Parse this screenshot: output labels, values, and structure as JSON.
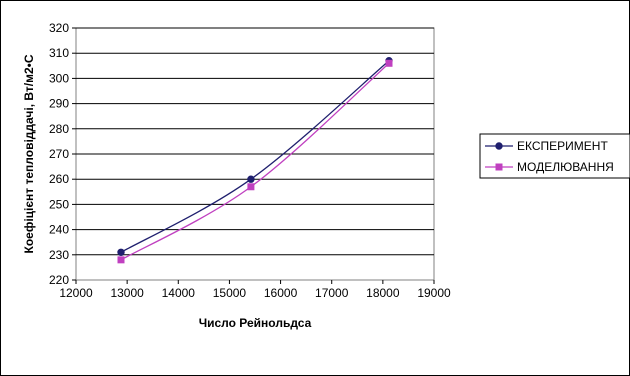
{
  "chart_data": {
    "type": "line",
    "title": "",
    "xlabel": "Число Рейнольдса",
    "ylabel": "Коефіцієнт тепловіддачі, Вт/м2•С",
    "xlim": [
      12000,
      19000
    ],
    "ylim": [
      220,
      320
    ],
    "x_ticks": [
      12000,
      13000,
      14000,
      15000,
      16000,
      17000,
      18000,
      19000
    ],
    "y_ticks": [
      220,
      230,
      240,
      250,
      260,
      270,
      280,
      290,
      300,
      310,
      320
    ],
    "grid": "horizontal",
    "legend_position": "right",
    "series": [
      {
        "name": "ЕКСПЕРИМЕНТ",
        "color": "#1F1F6E",
        "marker": "circle",
        "x": [
          12880,
          15420,
          18120
        ],
        "y": [
          231,
          260,
          307
        ]
      },
      {
        "name": "МОДЕЛЮВАННЯ",
        "color": "#C040C0",
        "marker": "square",
        "x": [
          12880,
          15420,
          18120
        ],
        "y": [
          228,
          257,
          306
        ]
      }
    ]
  }
}
